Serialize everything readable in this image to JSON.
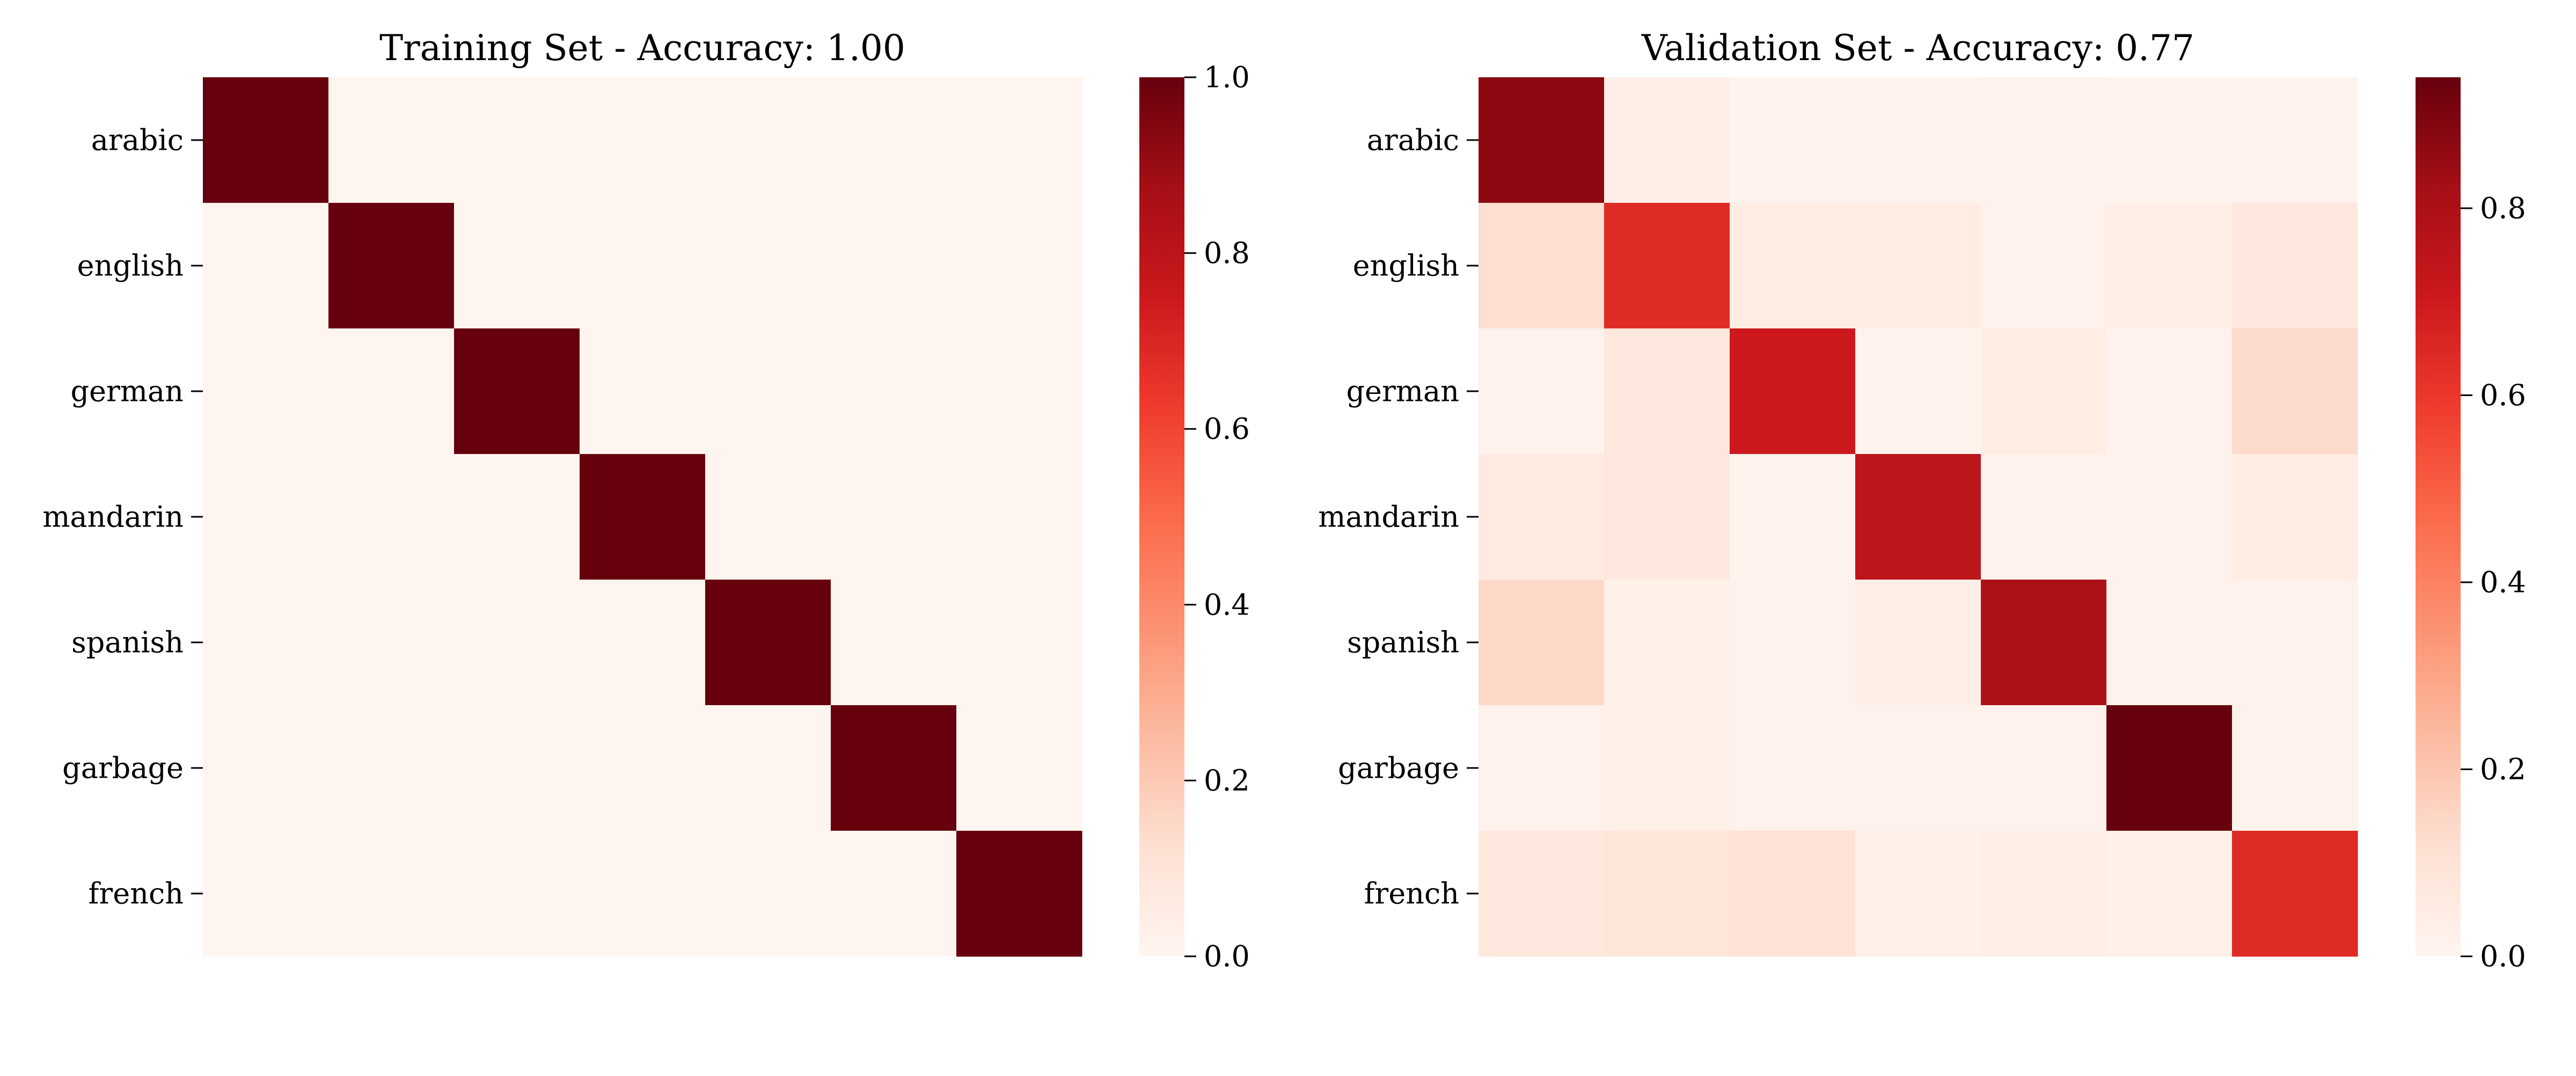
{
  "colormap": {
    "name": "Reds",
    "stops": [
      "#fff5f0",
      "#fee0d2",
      "#fcbba1",
      "#fc9272",
      "#fb6a4a",
      "#ef3b2c",
      "#cb181d",
      "#a50f15",
      "#67000d"
    ]
  },
  "chart_data": [
    {
      "type": "heatmap",
      "title": "Training Set - Accuracy: 1.00",
      "ylabels": [
        "arabic",
        "english",
        "german",
        "mandarin",
        "spanish",
        "garbage",
        "french"
      ],
      "xlabels": [],
      "vmin": 0.0,
      "vmax": 1.0,
      "colorbar_ticks": [
        0.0,
        0.2,
        0.4,
        0.6,
        0.8,
        1.0
      ],
      "colorbar_tick_labels": [
        "0.0",
        "0.2",
        "0.4",
        "0.6",
        "0.8",
        "1.0"
      ],
      "matrix": [
        [
          1.0,
          0.0,
          0.0,
          0.0,
          0.0,
          0.0,
          0.0
        ],
        [
          0.0,
          1.0,
          0.0,
          0.0,
          0.0,
          0.0,
          0.0
        ],
        [
          0.0,
          0.0,
          1.0,
          0.0,
          0.0,
          0.0,
          0.0
        ],
        [
          0.0,
          0.0,
          0.0,
          1.0,
          0.0,
          0.0,
          0.0
        ],
        [
          0.0,
          0.0,
          0.0,
          0.0,
          1.0,
          0.0,
          0.0
        ],
        [
          0.0,
          0.0,
          0.0,
          0.0,
          0.0,
          1.0,
          0.0
        ],
        [
          0.0,
          0.0,
          0.0,
          0.0,
          0.0,
          0.0,
          1.0
        ]
      ]
    },
    {
      "type": "heatmap",
      "title": "Validation Set - Accuracy: 0.77",
      "ylabels": [
        "arabic",
        "english",
        "german",
        "mandarin",
        "spanish",
        "garbage",
        "french"
      ],
      "xlabels": [],
      "vmin": 0.0,
      "vmax": 0.94,
      "colorbar_ticks": [
        0.0,
        0.2,
        0.4,
        0.6,
        0.8
      ],
      "colorbar_tick_labels": [
        "0.0",
        "0.2",
        "0.4",
        "0.6",
        "0.8"
      ],
      "matrix": [
        [
          0.87,
          0.04,
          0.01,
          0.01,
          0.02,
          0.01,
          0.01
        ],
        [
          0.12,
          0.64,
          0.05,
          0.05,
          0.02,
          0.04,
          0.07
        ],
        [
          0.02,
          0.07,
          0.7,
          0.01,
          0.05,
          0.02,
          0.13
        ],
        [
          0.06,
          0.08,
          0.01,
          0.75,
          0.02,
          0.02,
          0.05
        ],
        [
          0.14,
          0.03,
          0.02,
          0.04,
          0.8,
          0.02,
          0.02
        ],
        [
          0.02,
          0.03,
          0.02,
          0.02,
          0.02,
          0.94,
          0.02
        ],
        [
          0.07,
          0.09,
          0.1,
          0.03,
          0.04,
          0.03,
          0.64
        ]
      ]
    }
  ]
}
